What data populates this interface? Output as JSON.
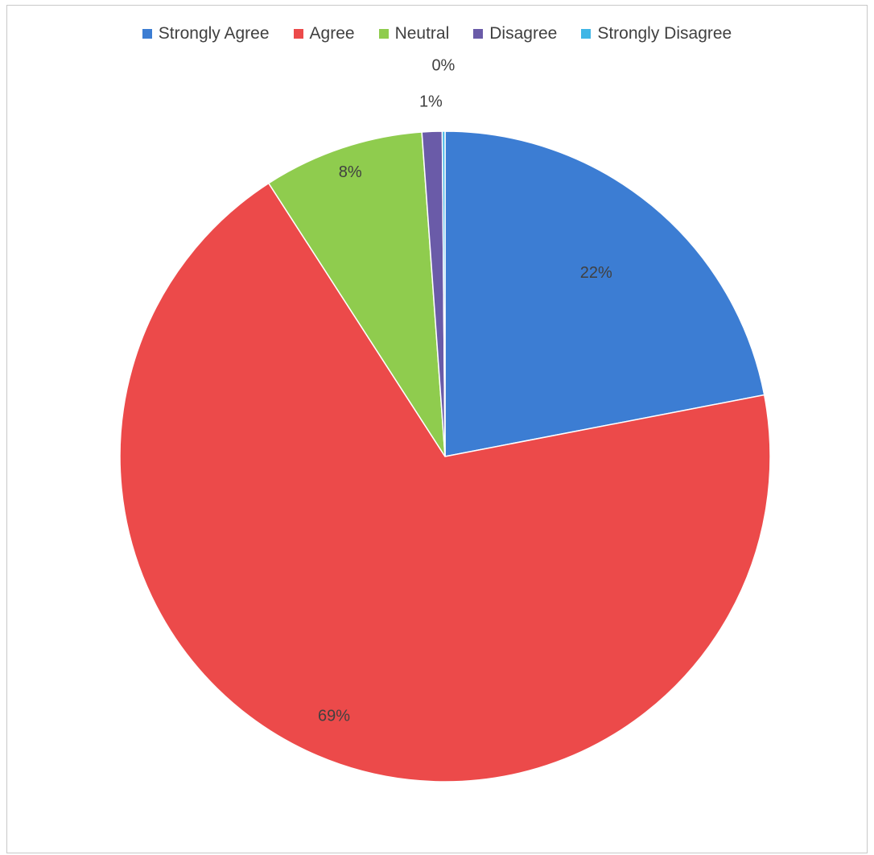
{
  "chart_data": {
    "type": "pie",
    "categories": [
      "Strongly Agree",
      "Agree",
      "Neutral",
      "Disagree",
      "Strongly Disagree"
    ],
    "values": [
      22,
      69,
      8,
      1,
      0
    ],
    "data_labels": [
      "22%",
      "69%",
      "8%",
      "1%",
      "0%"
    ],
    "colors": [
      "#3c7dd3",
      "#ec4a4a",
      "#8fcc4e",
      "#6a5ba8",
      "#3fb6e6"
    ],
    "legend_position": "top",
    "start_angle_deg": 0,
    "direction": "clockwise"
  }
}
